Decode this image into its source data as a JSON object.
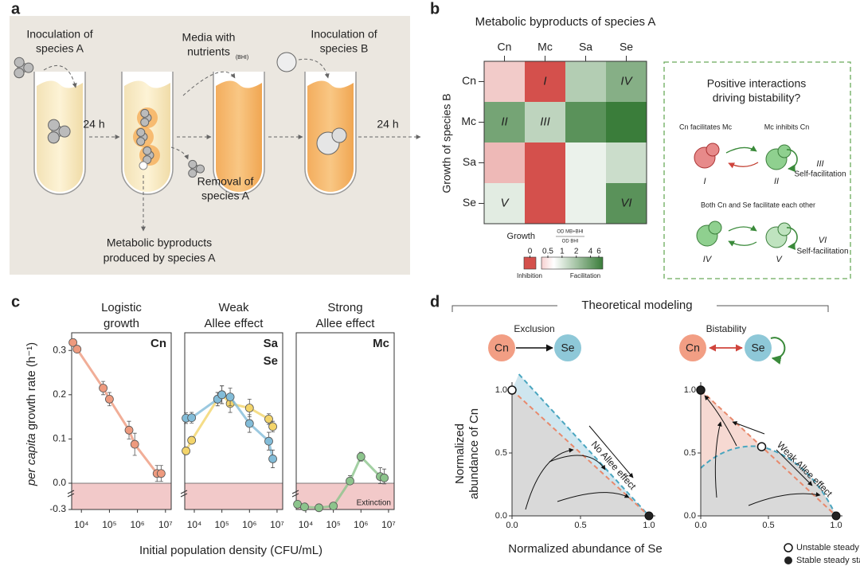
{
  "panel_labels": [
    "a",
    "b",
    "c",
    "d"
  ],
  "panel_a": {
    "inoculation_a": [
      "Inoculation of",
      "species A"
    ],
    "media": [
      "Media with",
      "nutrients"
    ],
    "media_note": "(BHI)",
    "inoculation_b": [
      "Inoculation of",
      "species B"
    ],
    "time_labels": [
      "24 h",
      "24 h"
    ],
    "removal": [
      "Removal of",
      "species A"
    ],
    "output": [
      "Metabolic byproducts",
      "produced by species A"
    ]
  },
  "chart_data": [
    {
      "type": "heatmap",
      "title": "Metabolic byproducts of species A",
      "x_categories": [
        "Cn",
        "Mc",
        "Sa",
        "Se"
      ],
      "y_categories": [
        "Cn",
        "Mc",
        "Sa",
        "Se"
      ],
      "y_label": "Growth of species B",
      "values": [
        [
          0.7,
          0,
          2,
          3
        ],
        [
          3.5,
          1.8,
          4.5,
          6
        ],
        [
          0.6,
          0,
          1.2,
          1.6
        ],
        [
          1.3,
          0,
          1.2,
          4.5
        ]
      ],
      "cell_labels": [
        [
          null,
          "I",
          null,
          "IV"
        ],
        [
          "II",
          "III",
          null,
          null
        ],
        [
          null,
          null,
          null,
          null
        ],
        [
          "V",
          null,
          null,
          "VI"
        ]
      ],
      "colorbar": {
        "label": "Growth",
        "formula_numerator": "OD  MB+BHI",
        "formula_denominator": "OD  BHI",
        "ticks": [
          0,
          0.5,
          1,
          2,
          4,
          6
        ],
        "low_label": "Inhibition",
        "high_label": "Facilitation"
      }
    },
    {
      "type": "line",
      "title_lines": [
        "Logistic",
        "growth"
      ],
      "xlog": true,
      "xlim": [
        4500,
        16000000
      ],
      "xticks": [
        {
          "value": 10000,
          "label": "10⁴"
        },
        {
          "value": 100000,
          "label": "10⁵"
        },
        {
          "value": 1000000,
          "label": "10⁶"
        },
        {
          "value": 10000000,
          "label": "10⁷"
        }
      ],
      "ylim": [
        -0.3,
        0.34
      ],
      "axis_break": true,
      "yticks": [
        {
          "value": -0.3,
          "label": "-0.3"
        },
        {
          "value": 0,
          "label": "0.0"
        },
        0.1,
        0.2,
        0.3
      ],
      "series": [
        {
          "name": "Cn",
          "color": "#ee9a7e",
          "x": [
            5000,
            7000,
            60000,
            100000,
            500000,
            800000,
            5000000,
            7000000
          ],
          "values": [
            0.318,
            0.303,
            0.215,
            0.19,
            0.12,
            0.088,
            0.022,
            0.022
          ],
          "errors": [
            0.008,
            0.006,
            0.015,
            0.015,
            0.02,
            0.025,
            0.018,
            0.018
          ]
        }
      ]
    },
    {
      "type": "line",
      "title_lines": [
        "Weak",
        "Allee effect"
      ],
      "xlog": true,
      "xlim": [
        4500,
        16000000
      ],
      "xticks": [
        {
          "value": 10000,
          "label": "10⁴"
        },
        {
          "value": 100000,
          "label": "10⁵"
        },
        {
          "value": 1000000,
          "label": "10⁶"
        },
        {
          "value": 10000000,
          "label": "10⁷"
        }
      ],
      "ylim": [
        -0.3,
        0.34
      ],
      "axis_break": true,
      "series": [
        {
          "name": "Sa",
          "color": "#f3d46a",
          "x": [
            5000,
            8000,
            70000,
            100000,
            200000,
            1000000,
            5000000,
            7000000
          ],
          "values": [
            0.073,
            0.097,
            0.19,
            0.2,
            0.18,
            0.17,
            0.145,
            0.128
          ],
          "errors": [
            0.008,
            0.008,
            0.015,
            0.02,
            0.02,
            0.02,
            0.012,
            0.012
          ]
        },
        {
          "name": "Se",
          "color": "#82bcd8",
          "x": [
            5000,
            8000,
            70000,
            100000,
            200000,
            1000000,
            5000000,
            7000000
          ],
          "values": [
            0.147,
            0.148,
            0.19,
            0.2,
            0.195,
            0.135,
            0.095,
            0.055
          ],
          "errors": [
            0.012,
            0.012,
            0.015,
            0.02,
            0.02,
            0.02,
            0.02,
            0.02
          ]
        }
      ]
    },
    {
      "type": "line",
      "title_lines": [
        "Strong",
        "Allee effect"
      ],
      "xlog": true,
      "xlim": [
        4500,
        16000000
      ],
      "xticks": [
        {
          "value": 10000,
          "label": "10⁴"
        },
        {
          "value": 100000,
          "label": "10⁵"
        },
        {
          "value": 1000000,
          "label": "10⁶"
        },
        {
          "value": 10000000,
          "label": "10⁷"
        }
      ],
      "ylim": [
        -0.3,
        0.34
      ],
      "axis_break": true,
      "annotation": "Extinction",
      "series": [
        {
          "name": "Mc",
          "color": "#8cc48c",
          "x": [
            5000,
            9000,
            30000,
            100000,
            400000,
            1000000,
            5000000,
            7000000
          ],
          "values": [
            -0.24,
            -0.27,
            -0.28,
            -0.26,
            0.005,
            0.06,
            0.015,
            0.012
          ],
          "errors": [
            0.02,
            0.02,
            0.02,
            0.02,
            0.012,
            0.01,
            0.02,
            0.02
          ]
        }
      ]
    }
  ],
  "panel_b_box": {
    "question": [
      "Positive interactions",
      "driving bistability?"
    ],
    "top_left": "Cn facilitates Mc",
    "top_right": "Mc inhibits Cn",
    "top_numerals": [
      "I",
      "II",
      "III"
    ],
    "self_facilitation": "Self-facilitation",
    "bottom_caption": "Both Cn and Se facilitate each other",
    "bottom_numerals": [
      "IV",
      "V",
      "VI"
    ]
  },
  "panel_c": {
    "y_label": [
      "per capita",
      "growth rate (h⁻¹)"
    ],
    "x_label": "Initial population density (CFU/mL)"
  },
  "panel_d": {
    "header": "Theoretical modeling",
    "nodes": [
      "Cn",
      "Se"
    ],
    "left_relation": "Exclusion",
    "right_relation": "Bistability",
    "left_annotation": "No Allee effect",
    "right_annotation": "Weak Allee effect",
    "xticks": [
      {
        "value": 0,
        "label": "0.0"
      },
      0.5,
      {
        "value": 1,
        "label": "1.0"
      }
    ],
    "yticks": [
      {
        "value": 0,
        "label": "0.0"
      },
      0.5,
      {
        "value": 1,
        "label": "1.0"
      }
    ],
    "y_label": [
      "Normalized",
      "abundance of Cn"
    ],
    "x_label": "Normalized abundance of Se",
    "legend": [
      "Unstable steady state",
      "Stable steady state"
    ]
  }
}
